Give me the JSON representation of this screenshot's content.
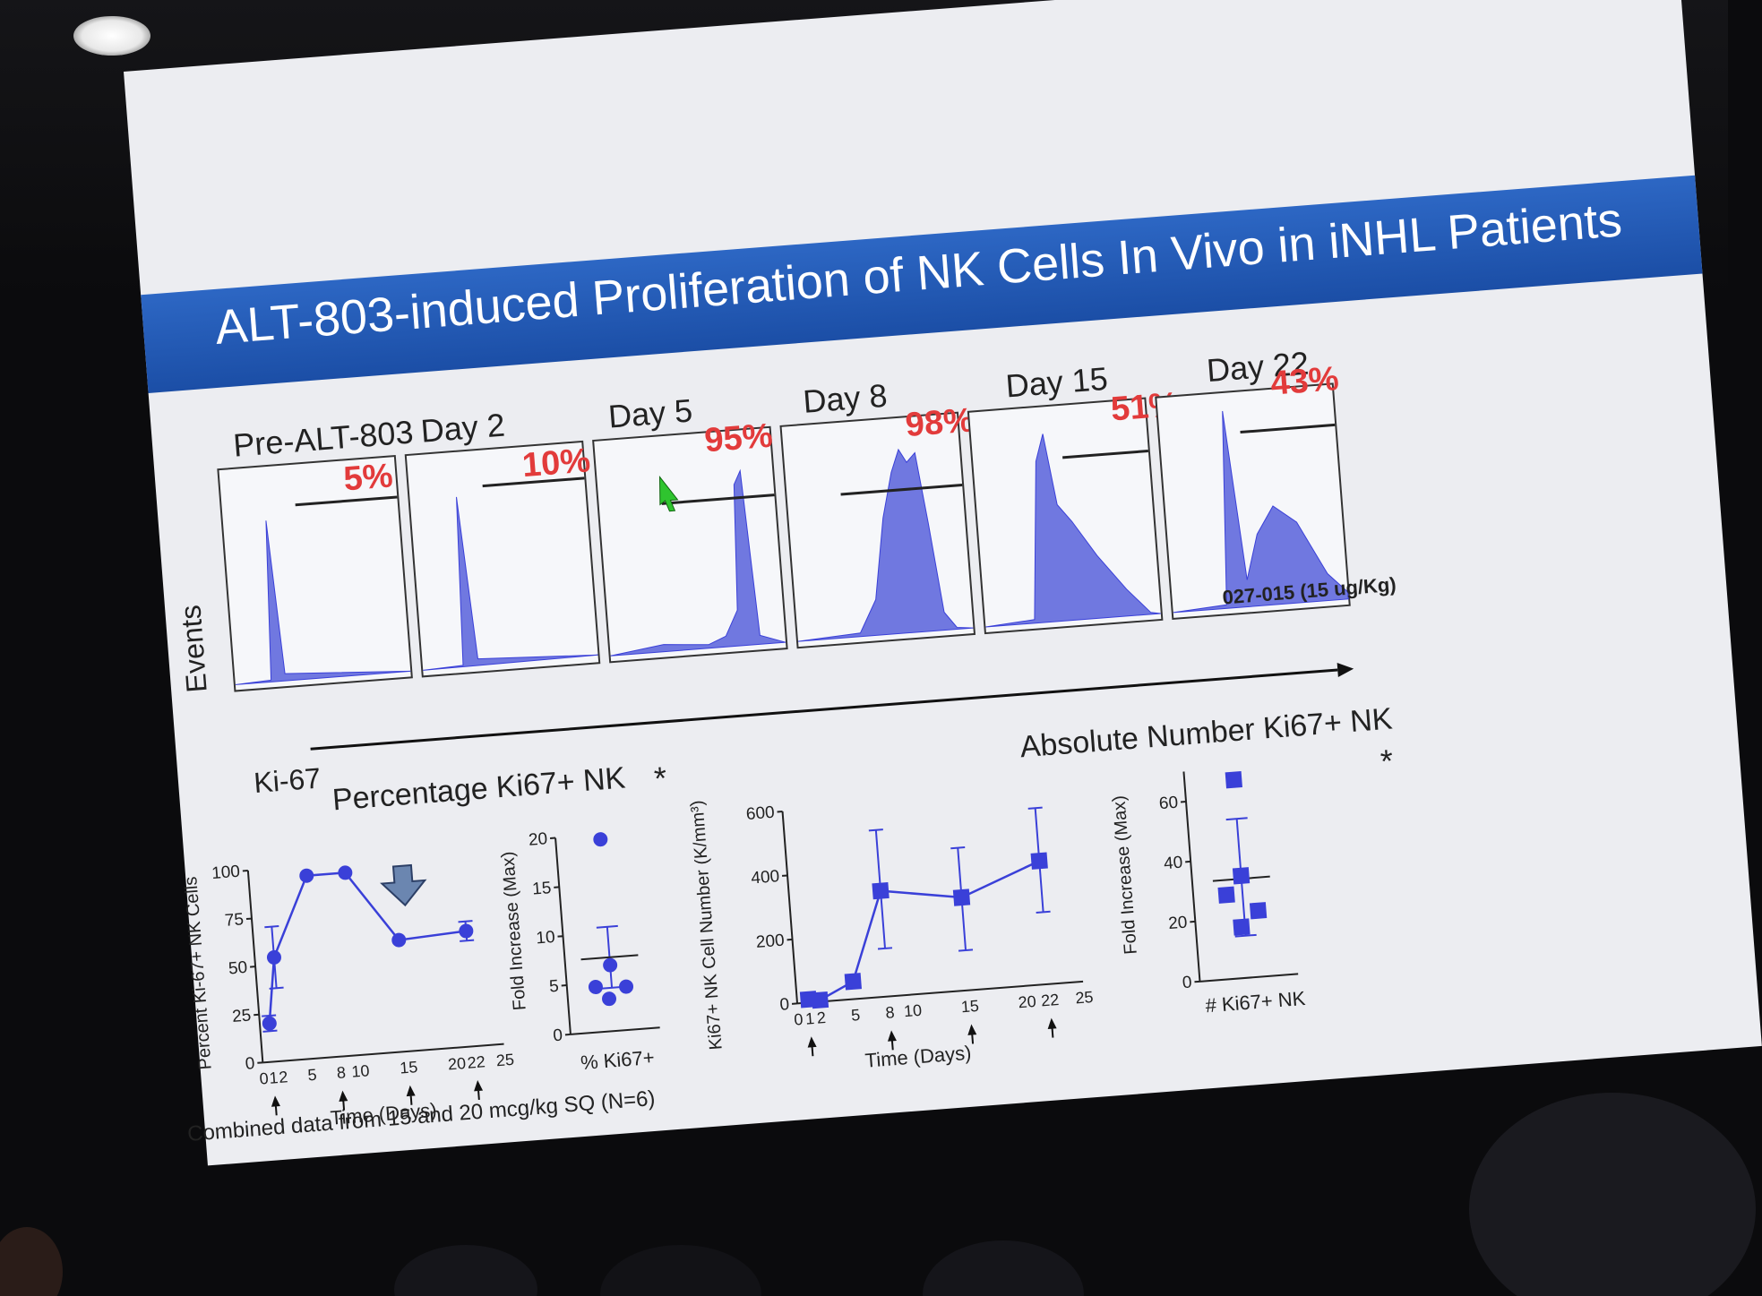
{
  "slide": {
    "title": "ALT-803-induced Proliferation of NK Cells In Vivo in iNHL Patients",
    "footnote": "Combined data from 15 and 20 mcg/kg SQ (N=6)"
  },
  "histograms": {
    "y_axis_label": "Events",
    "x_axis_label": "Ki-67",
    "patient_note": "027-015 (15 ug/Kg)",
    "panels": [
      {
        "label": "Pre-ALT-803",
        "percent": "5%"
      },
      {
        "label": "Day 2",
        "percent": "10%"
      },
      {
        "label": "Day 5",
        "percent": "95%"
      },
      {
        "label": "Day 8",
        "percent": "98%"
      },
      {
        "label": "Day 15",
        "percent": "51%"
      },
      {
        "label": "Day 22",
        "percent": "43%"
      }
    ]
  },
  "percentage_section": {
    "title": "Percentage Ki67+ NK",
    "significance": "*"
  },
  "absolute_section": {
    "title": "Absolute Number Ki67+ NK",
    "significance": "*"
  },
  "colors": {
    "title_bar": "#1f56b0",
    "series": "#3a40d8",
    "fill": "#7078e0",
    "highlight": "#e23b3b"
  },
  "chart_data": [
    {
      "type": "line",
      "ylabel": "Percent Ki-67+ NK Cells",
      "xlabel": "Time (Days)",
      "xlim": [
        0,
        25
      ],
      "ylim": [
        0,
        100
      ],
      "xticks": [
        "0",
        "1",
        "2",
        "5",
        "8",
        "10",
        "15",
        "20",
        "22",
        "25"
      ],
      "yticks": [
        "0",
        "25",
        "50",
        "75",
        "100"
      ],
      "x": [
        1,
        2,
        6,
        10,
        15,
        22
      ],
      "y": [
        20,
        54,
        95,
        95,
        58,
        60
      ],
      "error": [
        4,
        16,
        0,
        0,
        0,
        5
      ],
      "dosing_days": [
        1,
        8,
        15,
        22
      ]
    },
    {
      "type": "scatter",
      "ylabel": "Fold Increase (Max)",
      "category": "% Ki67+",
      "ylim": [
        0,
        20
      ],
      "yticks": [
        "0",
        "5",
        "10",
        "15",
        "20"
      ],
      "values": [
        19.5,
        6.7,
        4.6,
        4.4,
        3.3
      ],
      "mean": 7.5,
      "sem_upper": 10.6,
      "sem_lower": 4.4
    },
    {
      "type": "line",
      "ylabel": "Ki67+ NK Cell Number (K/mm³)",
      "xlabel": "Time (Days)",
      "xlim": [
        0,
        25
      ],
      "ylim": [
        0,
        600
      ],
      "xticks": [
        "0",
        "1",
        "2",
        "5",
        "8",
        "10",
        "15",
        "20",
        "22",
        "25"
      ],
      "yticks": [
        "0",
        "200",
        "400",
        "600"
      ],
      "x": [
        1,
        2,
        5,
        8,
        15,
        22
      ],
      "y": [
        10,
        5,
        55,
        330,
        290,
        385
      ],
      "err_upper": [
        10,
        5,
        55,
        520,
        445,
        550
      ],
      "err_lower": [
        10,
        5,
        55,
        150,
        125,
        225
      ],
      "dosing_days": [
        1,
        8,
        15,
        22
      ]
    },
    {
      "type": "scatter",
      "ylabel": "Fold Increase (Max)",
      "category": "# Ki67+ NK",
      "ylim": [
        0,
        70
      ],
      "yticks": [
        "0",
        "20",
        "40",
        "60"
      ],
      "values": [
        66,
        34,
        28,
        22,
        17
      ],
      "mean": 33,
      "sem_upper": 53,
      "sem_lower": 14
    }
  ]
}
